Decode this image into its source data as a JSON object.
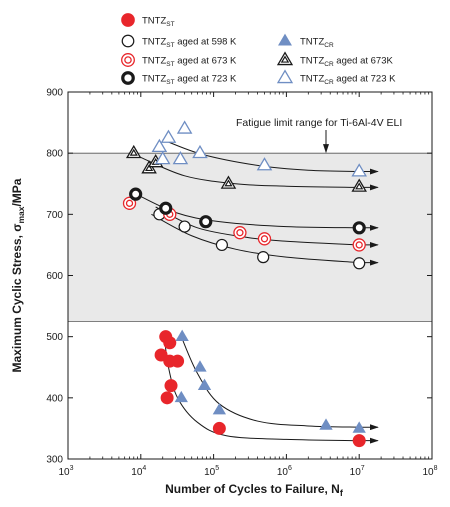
{
  "chart_data": {
    "type": "scatter",
    "x_scale": "log",
    "xlim": [
      1000,
      100000000
    ],
    "ylim": [
      300,
      900
    ],
    "x_tick_labels": [
      {
        "base": "10",
        "exp": "3"
      },
      {
        "base": "10",
        "exp": "4"
      },
      {
        "base": "10",
        "exp": "5"
      },
      {
        "base": "10",
        "exp": "6"
      },
      {
        "base": "10",
        "exp": "7"
      },
      {
        "base": "10",
        "exp": "8"
      }
    ],
    "y_ticks": [
      300,
      400,
      500,
      600,
      700,
      800,
      900
    ],
    "y_tick_labels": [
      "300",
      "400",
      "500",
      "600",
      "700",
      "800",
      "900"
    ],
    "xlabel": {
      "text": "Number of Cycles to Failure, N",
      "sub": "f"
    },
    "ylabel": {
      "pre": "Maximum Cyclic Stress, σ",
      "sub": "max",
      "post": "/MPa"
    },
    "grid": false,
    "fatigue_band": {
      "y_range": [
        525,
        800
      ],
      "label": "Fatigue limit range for Ti-6Al-4V ELI",
      "color": "#e9e9e9"
    },
    "legend_placement": "top",
    "series": [
      {
        "name": "TNTZST",
        "legend": {
          "pre": "TNTZ",
          "sub": "ST",
          "post": ""
        },
        "marker": "filled-circle",
        "color": "#e8262b",
        "points": [
          [
            22000,
            500
          ],
          [
            25000,
            490
          ],
          [
            19000,
            470
          ],
          [
            25000,
            460
          ],
          [
            32000,
            460
          ],
          [
            26000,
            420
          ],
          [
            23000,
            400
          ],
          [
            120000,
            350
          ],
          [
            10000000,
            330
          ]
        ],
        "curve": [
          [
            21000,
            500
          ],
          [
            24000,
            450
          ],
          [
            32000,
            400
          ],
          [
            60000,
            360
          ],
          [
            150000,
            338
          ],
          [
            1000000,
            332
          ],
          [
            10000000,
            330
          ]
        ],
        "runout": [
          [
            10000000,
            330
          ],
          [
            18000000,
            330
          ]
        ]
      },
      {
        "name": "TNTZST aged at 598 K",
        "legend": {
          "pre": "TNTZ",
          "sub": "ST",
          "post": " aged at 598 K"
        },
        "marker": "open-circle",
        "color": "#1a1a1a",
        "points": [
          [
            18000,
            700
          ],
          [
            40000,
            680
          ],
          [
            130000,
            650
          ],
          [
            480000,
            630
          ],
          [
            10000000,
            620
          ]
        ],
        "curve": [
          [
            14000,
            700
          ],
          [
            50000,
            665
          ],
          [
            200000,
            643
          ],
          [
            1000000,
            630
          ],
          [
            10000000,
            621
          ]
        ],
        "runout": [
          [
            10000000,
            621
          ],
          [
            18000000,
            621
          ]
        ]
      },
      {
        "name": "TNTZST aged at 673 K",
        "legend": {
          "pre": "TNTZ",
          "sub": "ST",
          "post": " aged at 673 K"
        },
        "marker": "double-circle",
        "color": "#e8262b",
        "points": [
          [
            7000,
            718
          ],
          [
            25000,
            700
          ],
          [
            230000,
            670
          ],
          [
            500000,
            660
          ],
          [
            10000000,
            650
          ]
        ],
        "curve": [
          [
            16000,
            712
          ],
          [
            60000,
            678
          ],
          [
            300000,
            662
          ],
          [
            1000000,
            656
          ],
          [
            10000000,
            650
          ]
        ],
        "runout": [
          [
            10000000,
            650
          ],
          [
            18000000,
            650
          ]
        ]
      },
      {
        "name": "TNTZST aged at 723 K",
        "legend": {
          "pre": "TNTZ",
          "sub": "ST",
          "post": " aged at 723 K"
        },
        "marker": "thick-circle",
        "color": "#1a1a1a",
        "points": [
          [
            8500,
            733
          ],
          [
            22000,
            710
          ],
          [
            78000,
            688
          ],
          [
            10000000,
            678
          ]
        ],
        "curve": [
          [
            8000,
            735
          ],
          [
            30000,
            703
          ],
          [
            120000,
            688
          ],
          [
            1000000,
            680
          ],
          [
            10000000,
            678
          ]
        ],
        "runout": [
          [
            10000000,
            678
          ],
          [
            18000000,
            678
          ]
        ]
      },
      {
        "name": "TNTZCR",
        "legend": {
          "pre": "TNTZ",
          "sub": "CR",
          "post": ""
        },
        "marker": "filled-triangle",
        "color": "#6f8ec3",
        "points": [
          [
            37000,
            500
          ],
          [
            65000,
            450
          ],
          [
            75000,
            420
          ],
          [
            36000,
            400
          ],
          [
            120000,
            380
          ],
          [
            3500000,
            355
          ],
          [
            10000000,
            350
          ]
        ],
        "curve": [
          [
            36000,
            500
          ],
          [
            60000,
            440
          ],
          [
            120000,
            390
          ],
          [
            400000,
            362
          ],
          [
            2000000,
            354
          ],
          [
            10000000,
            352
          ]
        ],
        "runout": [
          [
            10000000,
            352
          ],
          [
            18000000,
            352
          ]
        ]
      },
      {
        "name": "TNTZCR aged at 673K",
        "legend": {
          "pre": "TNTZ",
          "sub": "CR",
          "post": " aged at 673K"
        },
        "marker": "double-triangle",
        "color": "#1a1a1a",
        "points": [
          [
            8000,
            800
          ],
          [
            13000,
            775
          ],
          [
            16000,
            785
          ],
          [
            160000,
            750
          ],
          [
            10000000,
            745
          ]
        ],
        "curve": [
          [
            10000,
            793
          ],
          [
            40000,
            763
          ],
          [
            200000,
            750
          ],
          [
            1000000,
            746
          ],
          [
            10000000,
            744
          ]
        ],
        "runout": [
          [
            10000000,
            744
          ],
          [
            18000000,
            744
          ]
        ]
      },
      {
        "name": "TNTZCR aged at 723 K",
        "legend": {
          "pre": "TNTZ",
          "sub": "CR",
          "post": " aged at 723 K"
        },
        "marker": "open-triangle",
        "color": "#6f8ec3",
        "points": [
          [
            18000,
            810
          ],
          [
            24000,
            825
          ],
          [
            40000,
            840
          ],
          [
            20000,
            790
          ],
          [
            35000,
            790
          ],
          [
            65000,
            800
          ],
          [
            500000,
            780
          ],
          [
            10000000,
            770
          ]
        ],
        "curve": [
          [
            20000,
            822
          ],
          [
            70000,
            798
          ],
          [
            400000,
            780
          ],
          [
            2000000,
            772
          ],
          [
            10000000,
            770
          ]
        ],
        "runout": [
          [
            10000000,
            770
          ],
          [
            18000000,
            770
          ]
        ]
      }
    ]
  }
}
